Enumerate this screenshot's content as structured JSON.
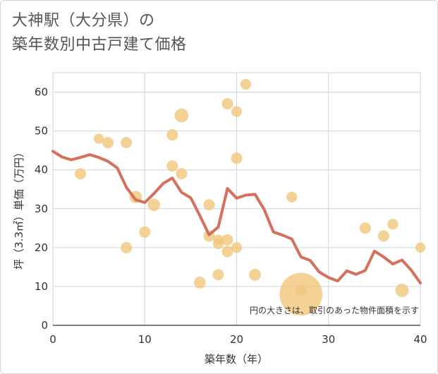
{
  "title_line1": "大神駅（大分県）の",
  "title_line2": "築年数別中古戸建て価格",
  "chart_data": {
    "type": "scatter",
    "xlabel": "築年数（年）",
    "ylabel": "坪（3.3㎡）単価（万円）",
    "xlim": [
      0,
      40
    ],
    "ylim": [
      0,
      65
    ],
    "xticks": [
      0,
      10,
      20,
      30,
      40
    ],
    "yticks": [
      0,
      10,
      20,
      30,
      40,
      50,
      60
    ],
    "grid": true,
    "note": "円の大きさは、取引のあった物件面積を示す",
    "colors": {
      "points": "#f2c77e",
      "line": "#d4705c",
      "grid": "#c9d6e3"
    },
    "points": [
      {
        "x": 3,
        "y": 39,
        "size": 1
      },
      {
        "x": 5,
        "y": 48,
        "size": 0.8
      },
      {
        "x": 6,
        "y": 47,
        "size": 1
      },
      {
        "x": 8,
        "y": 47,
        "size": 1
      },
      {
        "x": 8,
        "y": 20,
        "size": 1
      },
      {
        "x": 9,
        "y": 33,
        "size": 1.2
      },
      {
        "x": 10,
        "y": 24,
        "size": 1
      },
      {
        "x": 11,
        "y": 31,
        "size": 1.2
      },
      {
        "x": 13,
        "y": 49,
        "size": 1
      },
      {
        "x": 13,
        "y": 41,
        "size": 1
      },
      {
        "x": 14,
        "y": 54,
        "size": 1.5
      },
      {
        "x": 14,
        "y": 39,
        "size": 1
      },
      {
        "x": 16,
        "y": 11,
        "size": 1.1
      },
      {
        "x": 17,
        "y": 31,
        "size": 1
      },
      {
        "x": 17,
        "y": 23,
        "size": 1
      },
      {
        "x": 18,
        "y": 22,
        "size": 0.8
      },
      {
        "x": 18,
        "y": 21,
        "size": 0.9
      },
      {
        "x": 18,
        "y": 13,
        "size": 1
      },
      {
        "x": 19,
        "y": 57,
        "size": 1
      },
      {
        "x": 19,
        "y": 22,
        "size": 1
      },
      {
        "x": 19,
        "y": 19,
        "size": 1
      },
      {
        "x": 20,
        "y": 55,
        "size": 0.9
      },
      {
        "x": 20,
        "y": 43,
        "size": 1
      },
      {
        "x": 20,
        "y": 20,
        "size": 0.9
      },
      {
        "x": 21,
        "y": 62,
        "size": 0.9
      },
      {
        "x": 22,
        "y": 13,
        "size": 1.1
      },
      {
        "x": 26,
        "y": 33,
        "size": 0.9
      },
      {
        "x": 27,
        "y": 8,
        "size": 4.9
      },
      {
        "x": 27,
        "y": 9,
        "size": 0.9
      },
      {
        "x": 34,
        "y": 25,
        "size": 1
      },
      {
        "x": 36,
        "y": 23,
        "size": 1
      },
      {
        "x": 37,
        "y": 26,
        "size": 0.9
      },
      {
        "x": 38,
        "y": 9,
        "size": 1.4
      },
      {
        "x": 40,
        "y": 20,
        "size": 0.8
      }
    ],
    "line": {
      "x": [
        0,
        1,
        2,
        3,
        4,
        5,
        6,
        7,
        8,
        9,
        10,
        11,
        12,
        13,
        14,
        15,
        16,
        17,
        18,
        19,
        20,
        21,
        22,
        23,
        24,
        25,
        26,
        27,
        28,
        29,
        30,
        31,
        32,
        33,
        34,
        35,
        36,
        37,
        38,
        39,
        40
      ],
      "y": [
        44.8,
        43.3,
        42.6,
        43.2,
        43.9,
        43.2,
        42.2,
        40.5,
        35.5,
        32.3,
        31.6,
        33.9,
        36.5,
        37.9,
        34.2,
        32.8,
        28.2,
        23.3,
        25.3,
        35.2,
        32.7,
        33.5,
        33.7,
        29.8,
        24.0,
        23.2,
        22.2,
        17.6,
        16.7,
        13.7,
        12.3,
        11.4,
        14.0,
        13.1,
        14.1,
        19.1,
        17.6,
        15.8,
        16.8,
        14.2,
        10.9
      ]
    }
  }
}
